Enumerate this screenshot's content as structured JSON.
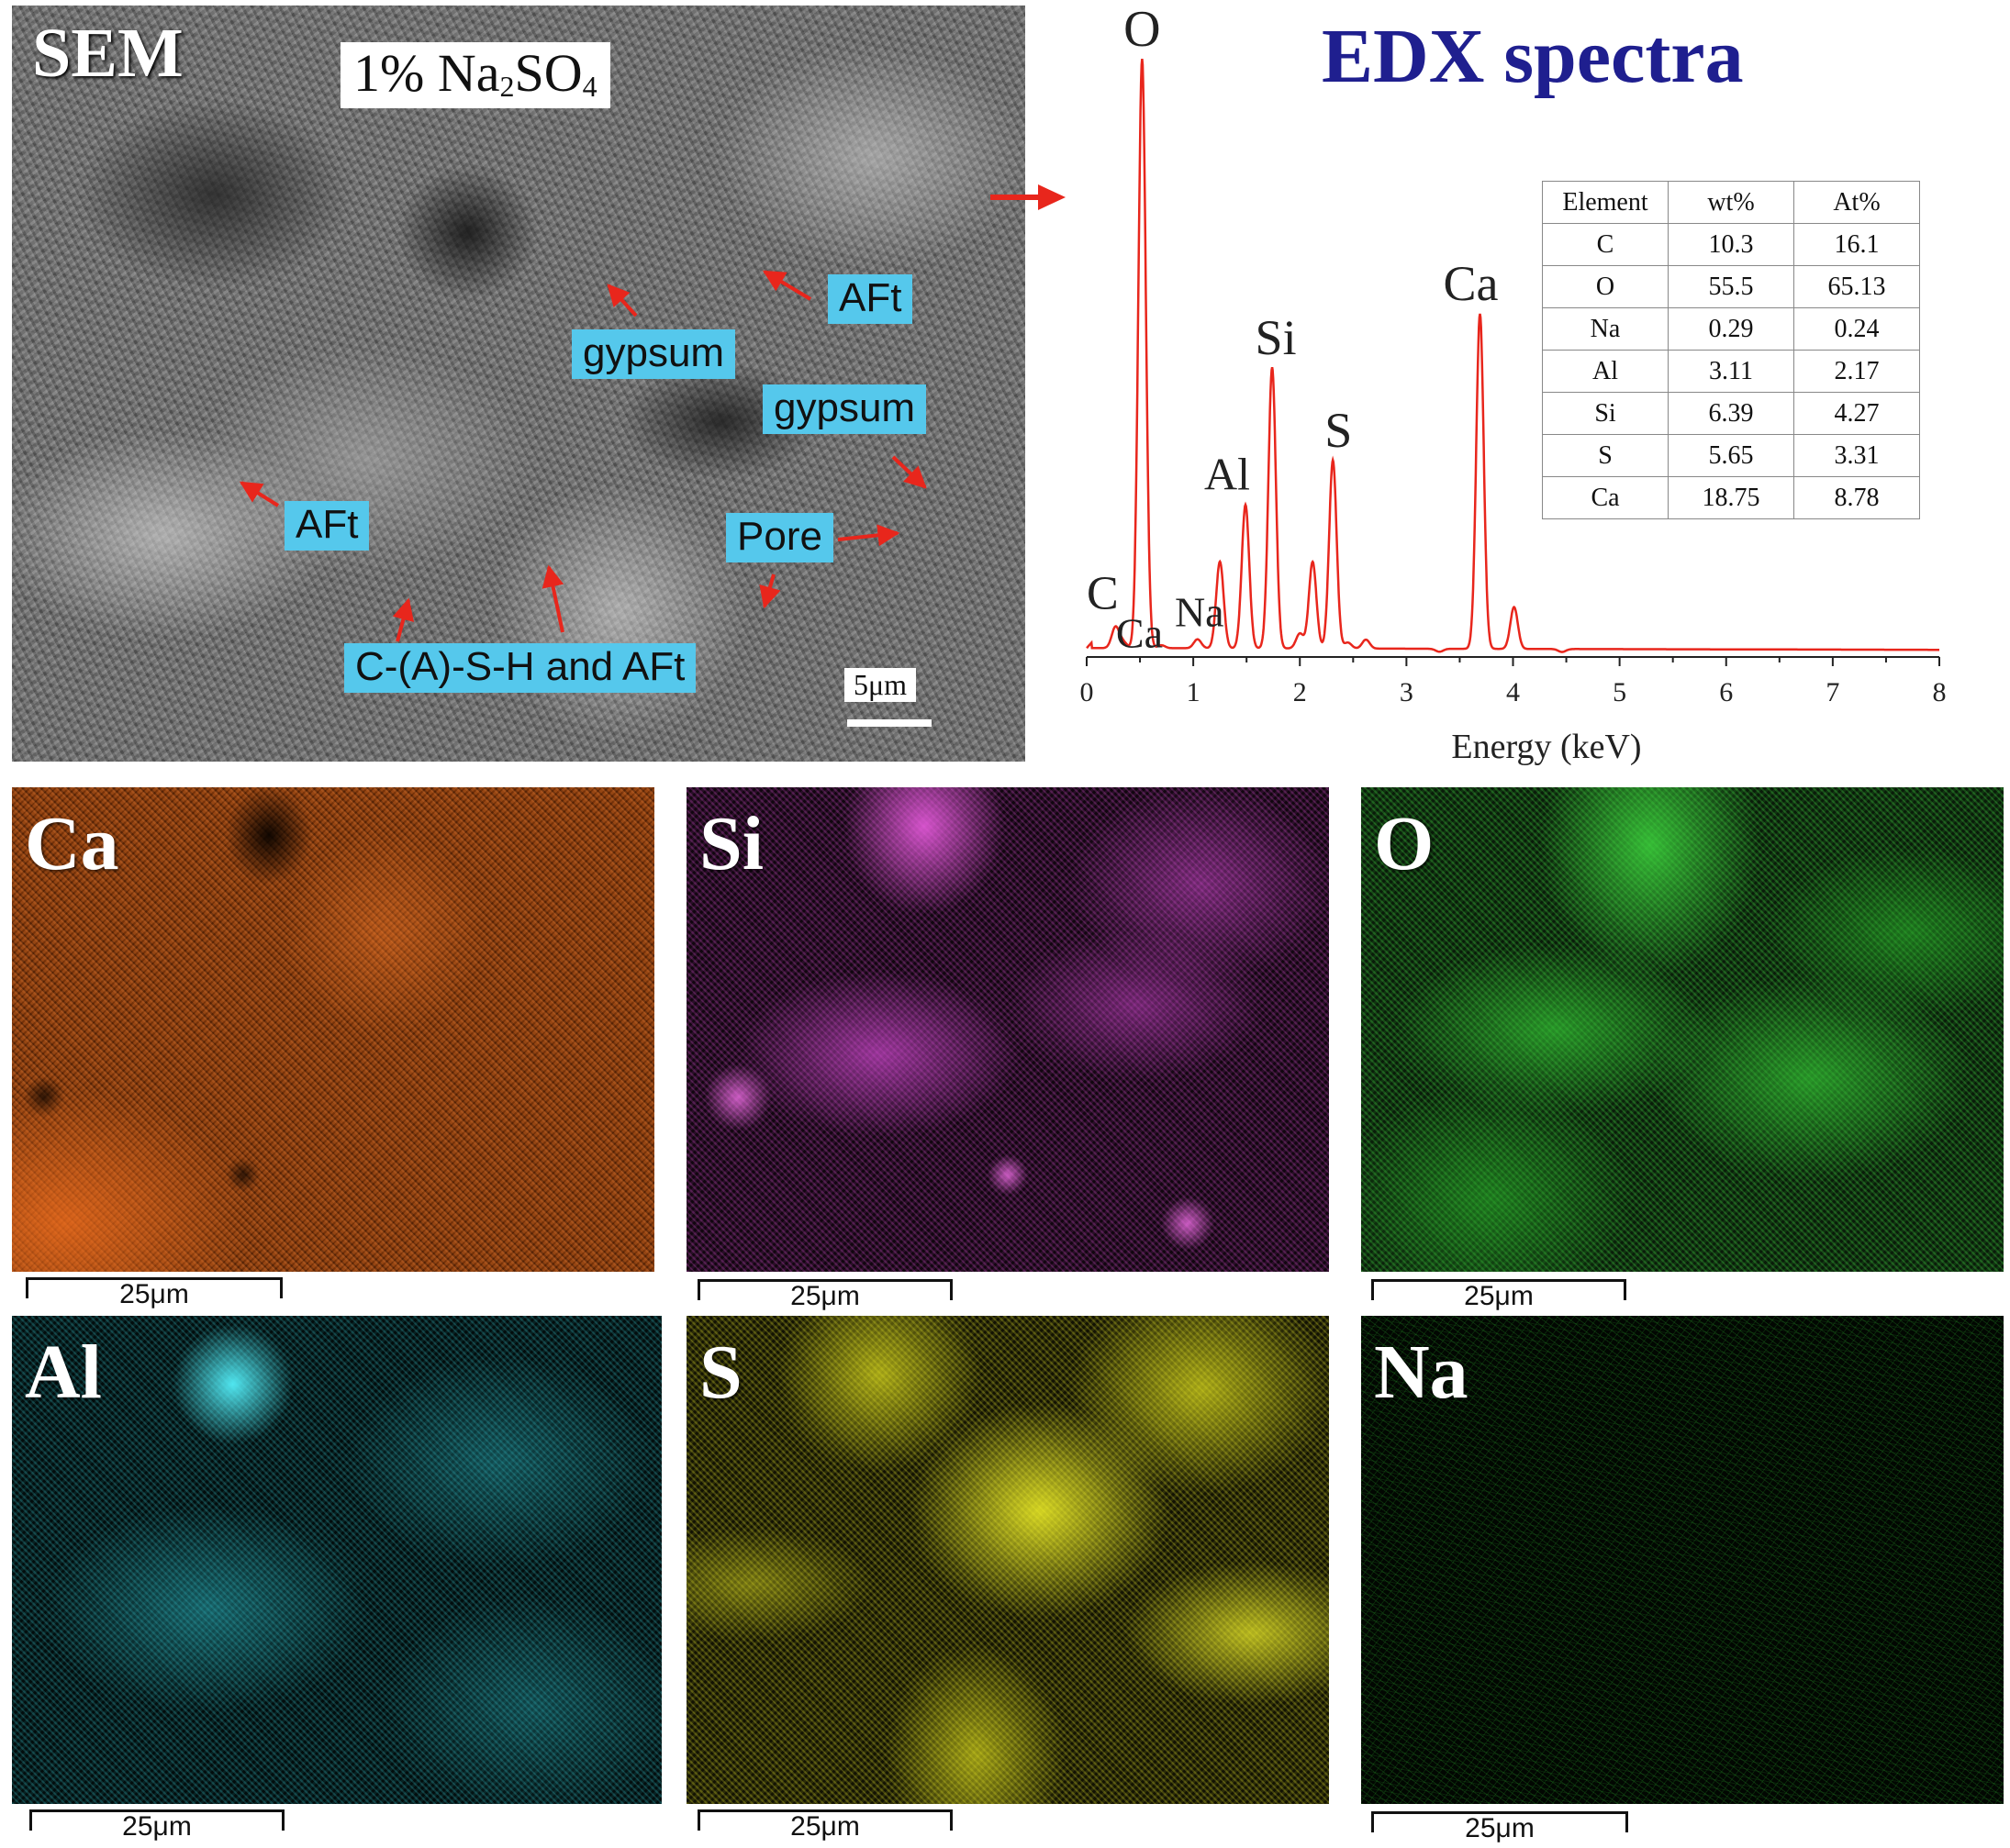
{
  "sem": {
    "title": "SEM",
    "sample": {
      "prefix": "1% Na",
      "sub1": "2",
      "mid": "SO",
      "sub2": "4"
    },
    "labels": [
      {
        "key": "aft_top",
        "text": "AFt"
      },
      {
        "key": "gypsum_center",
        "text": "gypsum"
      },
      {
        "key": "gypsum_right",
        "text": "gypsum"
      },
      {
        "key": "aft_left",
        "text": "AFt"
      },
      {
        "key": "pore",
        "text": "Pore"
      },
      {
        "key": "csh",
        "text": "C-(A)-S-H and AFt"
      }
    ],
    "scale": "5μm",
    "colors": {
      "label_bg": "#55c8ec",
      "arrow": "#e8261c"
    }
  },
  "edx": {
    "title": "EDX spectra",
    "title_color": "#1f1f8f",
    "table": {
      "headers": [
        "Element",
        "wt%",
        "At%"
      ],
      "rows": [
        [
          "C",
          "10.3",
          "16.1"
        ],
        [
          "O",
          "55.5",
          "65.13"
        ],
        [
          "Na",
          "0.29",
          "0.24"
        ],
        [
          "Al",
          "3.11",
          "2.17"
        ],
        [
          "Si",
          "6.39",
          "4.27"
        ],
        [
          "S",
          "5.65",
          "3.31"
        ],
        [
          "Ca",
          "18.75",
          "8.78"
        ]
      ]
    }
  },
  "chart_data": {
    "type": "line",
    "title": "EDX spectra",
    "xlabel": "Energy (keV)",
    "ylabel": "",
    "xlim": [
      0,
      8
    ],
    "ylim": [
      0,
      1
    ],
    "x_ticks": [
      "0",
      "1",
      "2",
      "3",
      "4",
      "5",
      "6",
      "7",
      "8"
    ],
    "line_color": "#e8261c",
    "baseline": 0.015,
    "peaks": [
      {
        "x": 0.27,
        "y": 0.05,
        "label": "C"
      },
      {
        "x": 0.34,
        "y": 0.025,
        "label": "Ca"
      },
      {
        "x": 0.52,
        "y": 1.0,
        "label": "O"
      },
      {
        "x": 0.7,
        "y": 0.02,
        "label": ""
      },
      {
        "x": 1.04,
        "y": 0.03,
        "label": "Na"
      },
      {
        "x": 1.25,
        "y": 0.16,
        "label": ""
      },
      {
        "x": 1.49,
        "y": 0.255,
        "label": "Al"
      },
      {
        "x": 1.74,
        "y": 0.485,
        "label": "Si"
      },
      {
        "x": 2.0,
        "y": 0.04,
        "label": ""
      },
      {
        "x": 2.12,
        "y": 0.16,
        "label": ""
      },
      {
        "x": 2.31,
        "y": 0.33,
        "label": "S"
      },
      {
        "x": 2.45,
        "y": 0.025,
        "label": ""
      },
      {
        "x": 2.62,
        "y": 0.03,
        "label": ""
      },
      {
        "x": 3.31,
        "y": 0.01,
        "label": ""
      },
      {
        "x": 3.69,
        "y": 0.575,
        "label": "Ca"
      },
      {
        "x": 4.01,
        "y": 0.085,
        "label": ""
      },
      {
        "x": 4.46,
        "y": 0.01,
        "label": ""
      }
    ]
  },
  "maps": [
    {
      "key": "ca",
      "label": "Ca",
      "scale": "25μm",
      "color": "#e8661c"
    },
    {
      "key": "si",
      "label": "Si",
      "scale": "25μm",
      "color": "#d64bd0"
    },
    {
      "key": "o",
      "label": "O",
      "scale": "25μm",
      "color": "#3fc23f"
    },
    {
      "key": "al",
      "label": "Al",
      "scale": "25μm",
      "color": "#3fcfd8"
    },
    {
      "key": "s",
      "label": "S",
      "scale": "25μm",
      "color": "#e4e422"
    },
    {
      "key": "na",
      "label": "Na",
      "scale": "25μm",
      "color": "#2fa82f"
    }
  ]
}
